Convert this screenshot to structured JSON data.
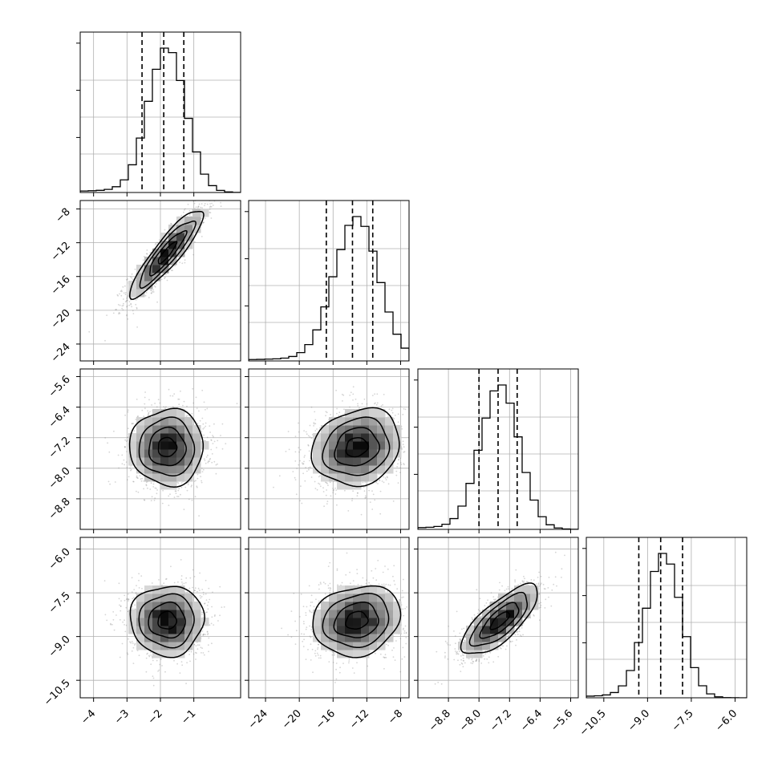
{
  "chart_data": {
    "type": "corner",
    "title": "",
    "parameters": [
      {
        "range": [
          -4.4,
          0.4
        ],
        "ticks": [
          -4,
          -3,
          -2,
          -1
        ],
        "tick_labels": [
          "−4",
          "−3",
          "−2",
          "−1"
        ],
        "mean": -1.8,
        "std": 0.55,
        "quantiles": [
          -2.55,
          -1.9,
          -1.3
        ]
      },
      {
        "range": [
          -26,
          -7
        ],
        "ticks": [
          -24,
          -20,
          -16,
          -12,
          -8
        ],
        "tick_labels": [
          "−24",
          "−20",
          "−16",
          "−12",
          "−8"
        ],
        "mean": -13.2,
        "std": 2.6,
        "quantiles": [
          -16.8,
          -13.7,
          -11.3
        ]
      },
      {
        "range": [
          -9.6,
          -5.4
        ],
        "ticks": [
          -8.8,
          -8.0,
          -7.2,
          -6.4,
          -5.6
        ],
        "tick_labels": [
          "−8.8",
          "−8.0",
          "−7.2",
          "−6.4",
          "−5.6"
        ],
        "mean": -7.45,
        "std": 0.5,
        "quantiles": [
          -8.0,
          -7.5,
          -7.0
        ]
      },
      {
        "range": [
          -11.1,
          -5.6
        ],
        "ticks": [
          -10.5,
          -9.0,
          -7.5,
          -6.0
        ],
        "tick_labels": [
          "−10.5",
          "−9.0",
          "−7.5",
          "−6.0"
        ],
        "mean": -8.45,
        "std": 0.6,
        "quantiles": [
          -9.3,
          -8.55,
          -7.8
        ]
      }
    ],
    "correlations": [
      [
        1.0,
        0.9,
        0.0,
        0.0
      ],
      [
        0.9,
        1.0,
        0.15,
        0.15
      ],
      [
        0.0,
        0.15,
        1.0,
        0.75
      ],
      [
        0.0,
        0.15,
        0.75,
        1.0
      ]
    ],
    "contour_levels_sigma": [
      0.5,
      1.0,
      1.5,
      2.0
    ],
    "grid": true,
    "scatter_color": "#888888",
    "line_color": "#000000"
  }
}
